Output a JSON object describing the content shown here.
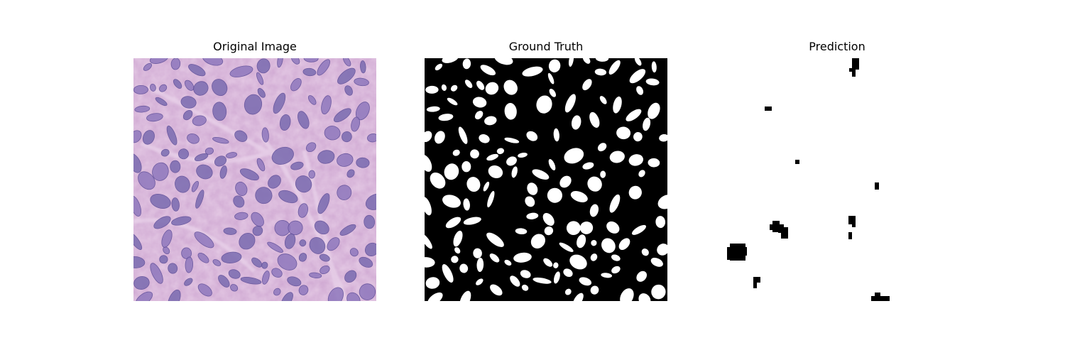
{
  "figure": {
    "panels": [
      {
        "title": "Original Image"
      },
      {
        "title": "Ground Truth"
      },
      {
        "title": "Prediction"
      }
    ]
  }
}
